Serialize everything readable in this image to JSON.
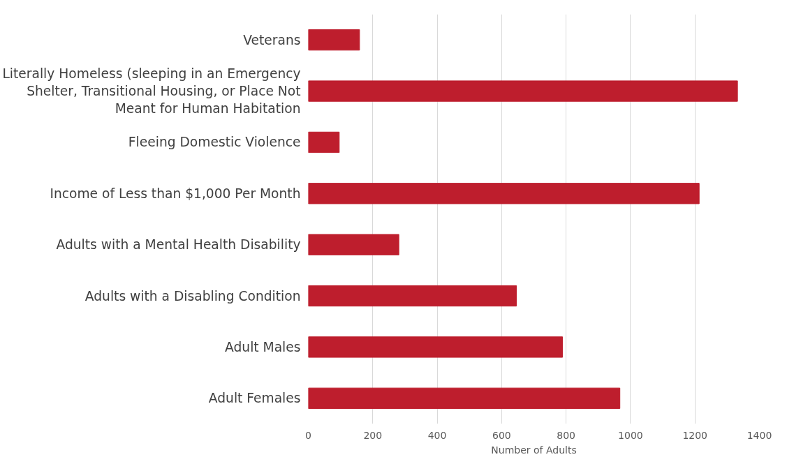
{
  "chart_data": {
    "type": "bar",
    "orientation": "horizontal",
    "xlabel": "Number of Adults",
    "categories": [
      "Veterans",
      "Literally Homeless (sleeping in an Emergency Shelter, Transitional Housing, or Place Not Meant for Human Habitation",
      "Fleeing Domestic Violence",
      "Income of Less than $1,000 Per Month",
      "Adults with a Mental Health Disability",
      "Adults with a Disabling Condition",
      "Adult Males",
      "Adult Females"
    ],
    "values": [
      159,
      1332,
      96,
      1213,
      281,
      646,
      789,
      967
    ],
    "color": "#be1e2d",
    "xlim": [
      0,
      1400
    ],
    "xticks": [
      0,
      200,
      400,
      600,
      800,
      1000,
      1200,
      1400
    ],
    "grid": "x"
  }
}
